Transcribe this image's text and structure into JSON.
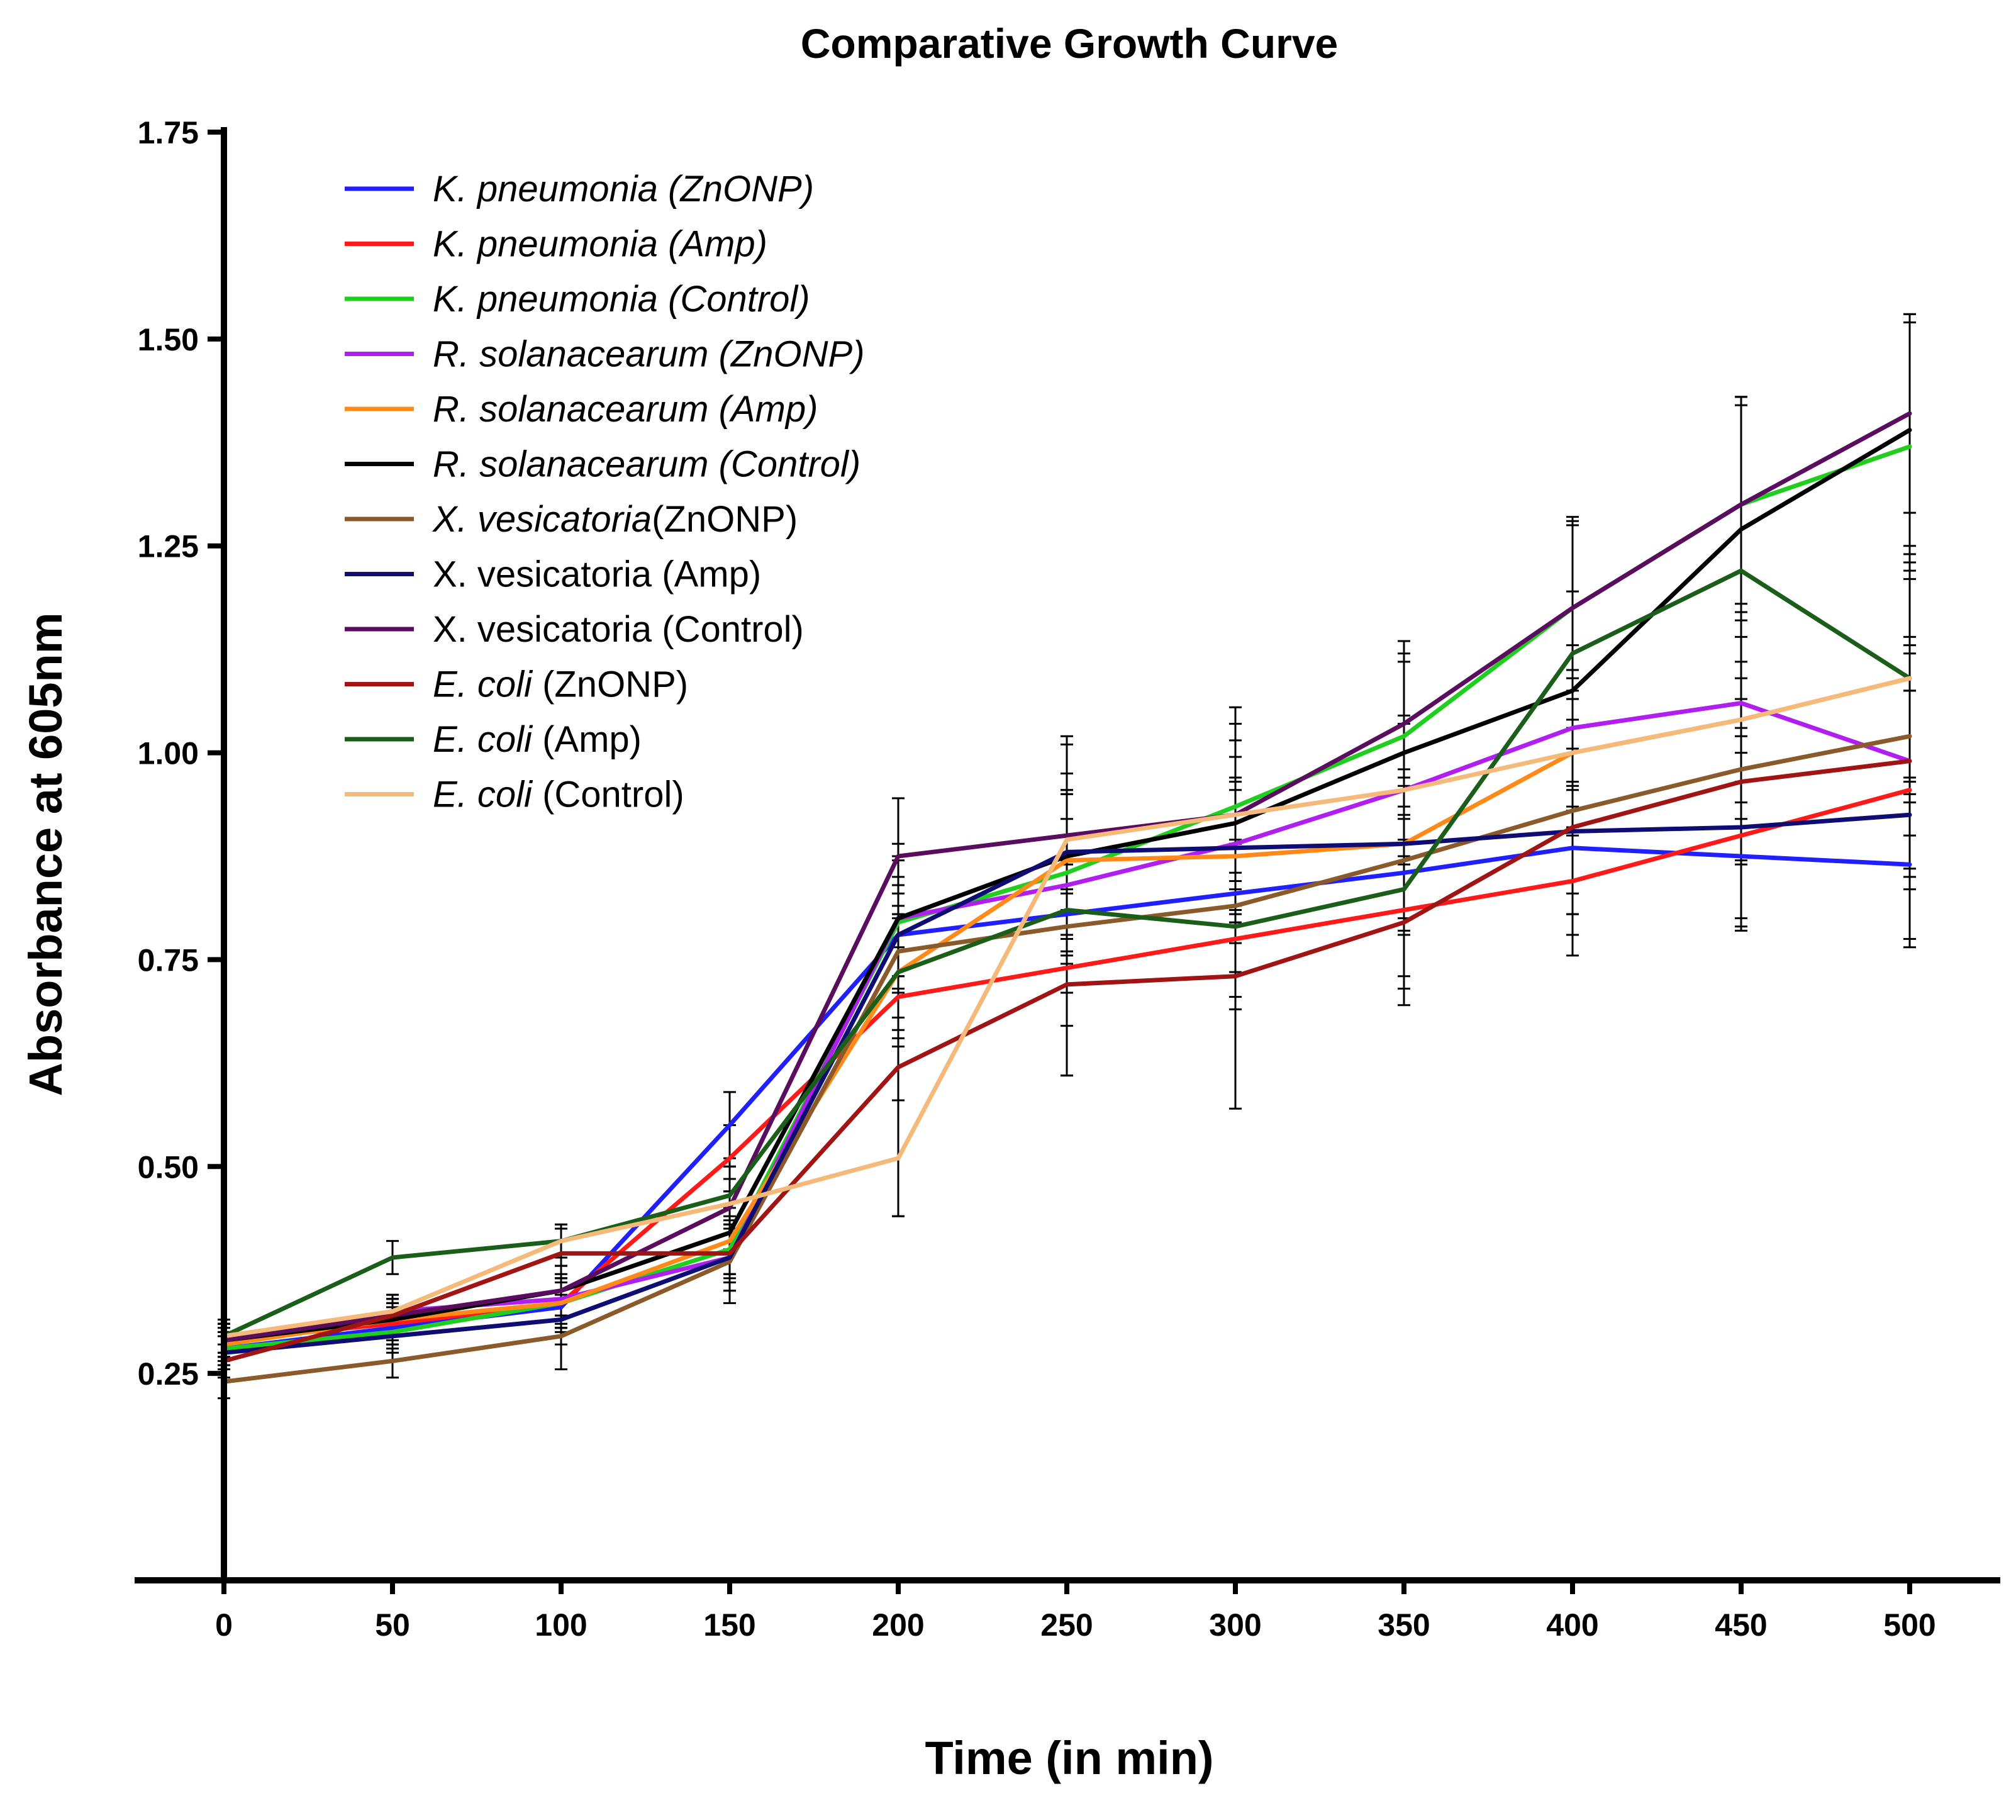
{
  "chart_data": {
    "type": "line",
    "title": "Comparative Growth Curve",
    "xlabel": "Time (in min)",
    "ylabel": "Absorbance at 605nm",
    "xlim": [
      0,
      500
    ],
    "ylim": [
      0,
      1.75
    ],
    "x_ticks": [
      "0",
      "50",
      "100",
      "150",
      "200",
      "250",
      "300",
      "350",
      "400",
      "450",
      "500"
    ],
    "y_ticks": [
      "0.25",
      "0.50",
      "0.75",
      "1.00",
      "1.25",
      "1.50",
      "1.75"
    ],
    "legend_position": "top-left",
    "x": [
      0,
      50,
      100,
      150,
      200,
      250,
      300,
      350,
      400,
      450,
      500
    ],
    "series": [
      {
        "name": "K. pneumonia (ZnONP)",
        "legend_parts": [
          {
            "text": "K. pneumonia (ZnONP)",
            "italic": true
          }
        ],
        "color": "#1f1fff",
        "values": [
          0.28,
          0.305,
          0.33,
          0.55,
          0.78,
          0.805,
          0.83,
          0.855,
          0.885,
          0.875,
          0.865
        ],
        "errors": [
          0.02,
          0.02,
          0.03,
          0.04,
          0.05,
          0.06,
          0.06,
          0.07,
          0.08,
          0.09,
          0.1
        ]
      },
      {
        "name": "K. pneumonia (Amp)",
        "legend_parts": [
          {
            "text": "K. pneumonia (Amp)",
            "italic": true
          }
        ],
        "color": "#ff1a1a",
        "values": [
          0.29,
          0.31,
          0.335,
          0.51,
          0.705,
          0.74,
          0.775,
          0.81,
          0.845,
          0.9,
          0.955
        ],
        "errors": [
          0.02,
          0.02,
          0.03,
          0.04,
          0.06,
          0.07,
          0.07,
          0.08,
          0.09,
          0.1,
          0.12
        ]
      },
      {
        "name": "K. pneumonia (Control)",
        "legend_parts": [
          {
            "text": "K. pneumonia (Control)",
            "italic": true
          }
        ],
        "color": "#1fce1f",
        "values": [
          0.28,
          0.3,
          0.335,
          0.4,
          0.795,
          0.855,
          0.935,
          1.02,
          1.175,
          1.3,
          1.37
        ],
        "errors": [
          0.02,
          0.02,
          0.03,
          0.04,
          0.08,
          0.1,
          0.1,
          0.1,
          0.1,
          0.13,
          0.15
        ]
      },
      {
        "name": "R. solanacearum (ZnONP)",
        "legend_parts": [
          {
            "text": "R. solanacearum (ZnONP)",
            "italic": true
          }
        ],
        "color": "#b01ff0",
        "values": [
          0.29,
          0.325,
          0.34,
          0.39,
          0.8,
          0.84,
          0.89,
          0.955,
          1.03,
          1.06,
          0.99
        ],
        "errors": [
          0.02,
          0.02,
          0.03,
          0.04,
          0.07,
          0.08,
          0.08,
          0.09,
          0.1,
          0.12,
          0.13
        ]
      },
      {
        "name": "R. solanacearum (Amp)",
        "legend_parts": [
          {
            "text": "R. solanacearum (Amp)",
            "italic": true
          }
        ],
        "color": "#ff8a1a",
        "values": [
          0.285,
          0.315,
          0.335,
          0.41,
          0.735,
          0.87,
          0.875,
          0.89,
          1.0,
          1.04,
          1.09
        ],
        "errors": [
          0.02,
          0.02,
          0.03,
          0.04,
          0.07,
          0.08,
          0.08,
          0.09,
          0.1,
          0.12,
          0.14
        ]
      },
      {
        "name": "R. solanacearum (Control)",
        "legend_parts": [
          {
            "text": "R. solanacearum (Control)",
            "italic": true
          }
        ],
        "color": "#000000",
        "values": [
          0.29,
          0.315,
          0.35,
          0.42,
          0.8,
          0.875,
          0.915,
          1.0,
          1.075,
          1.27,
          1.39
        ],
        "errors": [
          0.02,
          0.02,
          0.03,
          0.05,
          0.09,
          0.1,
          0.1,
          0.11,
          0.12,
          0.16,
          0.14
        ]
      },
      {
        "name": "X. vesicatoria(ZnONP)",
        "legend_parts": [
          {
            "text": "X. vesicatoria",
            "italic": true
          },
          {
            "text": "(ZnONP)",
            "italic": false
          }
        ],
        "color": "#8b5a2b",
        "values": [
          0.24,
          0.265,
          0.295,
          0.385,
          0.76,
          0.79,
          0.815,
          0.87,
          0.93,
          0.98,
          1.02
        ],
        "errors": [
          0.02,
          0.02,
          0.04,
          0.05,
          0.08,
          0.08,
          0.08,
          0.09,
          0.1,
          0.11,
          0.12
        ]
      },
      {
        "name": "X. vesicatoria (Amp)",
        "legend_parts": [
          {
            "text": "X. vesicatoria (Amp)",
            "italic": false
          }
        ],
        "color": "#0d0d73",
        "values": [
          0.275,
          0.295,
          0.315,
          0.39,
          0.78,
          0.88,
          0.885,
          0.89,
          0.905,
          0.91,
          0.925
        ],
        "errors": [
          0.02,
          0.02,
          0.03,
          0.04,
          0.07,
          0.07,
          0.08,
          0.08,
          0.1,
          0.12,
          0.15
        ]
      },
      {
        "name": "X. vesicatoria (Control)",
        "legend_parts": [
          {
            "text": "X. vesicatoria (Control)",
            "italic": false
          }
        ],
        "color": "#5a0d5e",
        "values": [
          0.29,
          0.32,
          0.35,
          0.45,
          0.875,
          0.9,
          0.925,
          1.035,
          1.175,
          1.3,
          1.41
        ],
        "errors": [
          0.02,
          0.02,
          0.03,
          0.05,
          0.07,
          0.12,
          0.13,
          0.1,
          0.11,
          0.13,
          0.12
        ]
      },
      {
        "name": "E. coli (ZnONP)",
        "legend_parts": [
          {
            "text": "E. coli",
            "italic": true
          },
          {
            "text": " (ZnONP)",
            "italic": false
          }
        ],
        "color": "#a01414",
        "values": [
          0.265,
          0.32,
          0.395,
          0.395,
          0.62,
          0.72,
          0.73,
          0.795,
          0.91,
          0.965,
          0.99
        ],
        "errors": [
          0.02,
          0.02,
          0.03,
          0.03,
          0.18,
          0.11,
          0.16,
          0.1,
          0.13,
          0.1,
          0.14
        ]
      },
      {
        "name": "E. coli (Amp)",
        "legend_parts": [
          {
            "text": "E. coli",
            "italic": true
          },
          {
            "text": " (Amp)",
            "italic": false
          }
        ],
        "color": "#1a5e1a",
        "values": [
          0.295,
          0.39,
          0.41,
          0.465,
          0.735,
          0.81,
          0.79,
          0.835,
          1.12,
          1.22,
          1.09
        ],
        "errors": [
          0.02,
          0.02,
          0.02,
          0.035,
          0.08,
          0.2,
          0.1,
          0.12,
          0.16,
          0.2,
          0.15
        ]
      },
      {
        "name": "E. coli (Control)",
        "legend_parts": [
          {
            "text": "E. coli",
            "italic": true
          },
          {
            "text": " (Control)",
            "italic": false
          }
        ],
        "color": "#f5b97a",
        "values": [
          0.295,
          0.325,
          0.41,
          0.455,
          0.51,
          0.895,
          0.925,
          0.955,
          1.0,
          1.04,
          1.09
        ],
        "errors": [
          0.02,
          0.02,
          0.02,
          0.03,
          0.07,
          0.06,
          0.07,
          0.08,
          0.09,
          0.1,
          0.12
        ]
      }
    ]
  }
}
